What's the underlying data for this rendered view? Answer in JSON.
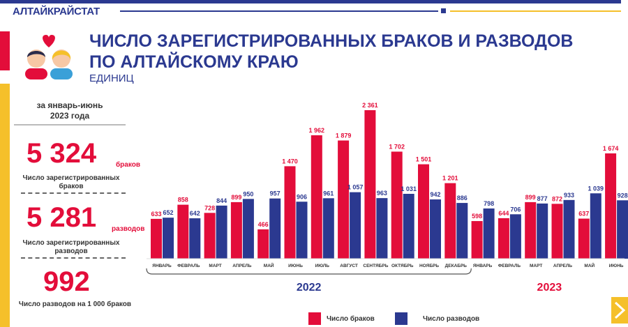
{
  "header": {
    "brand": "АЛТАЙКРАЙСТАТ",
    "title_line1": "ЧИСЛО ЗАРЕГИСТРИРОВАННЫХ БРАКОВ И РАЗВОДОВ",
    "title_line2": "ПО АЛТАЙСКОМУ КРАЮ",
    "subtitle": "ЕДИНИЦ"
  },
  "summary": {
    "period_line1": "за январь-июнь",
    "period_line2": "2023 года",
    "marriages_value": "5 324",
    "marriages_unit": "браков",
    "marriages_caption_line1": "Число зарегистрированных",
    "marriages_caption_line2": "браков",
    "divorces_value": "5 281",
    "divorces_unit": "разводов",
    "divorces_caption_line1": "Число зарегистрированных",
    "divorces_caption_line2": "разводов",
    "ratio_value": "992",
    "ratio_caption": "Число разводов на 1 000 браков"
  },
  "colors": {
    "marriages": "#e30d3a",
    "divorces": "#2b3990",
    "accent_yellow": "#f5c02a"
  },
  "icons": [
    "couple-icon",
    "heart-icon",
    "next-arrow-icon"
  ],
  "chart_data": {
    "type": "bar",
    "categories": [
      "ЯНВАРЬ",
      "ФЕВРАЛЬ",
      "МАРТ",
      "АПРЕЛЬ",
      "МАЙ",
      "ИЮНЬ",
      "ИЮЛЬ",
      "АВГУСТ",
      "СЕНТЯБРЬ",
      "ОКТЯБРЬ",
      "НОЯБРЬ",
      "ДЕКАБРЬ",
      "ЯНВАРЬ",
      "ФЕВРАЛЬ",
      "МАРТ",
      "АПРЕЛЬ",
      "МАЙ",
      "ИЮНЬ"
    ],
    "groups": [
      {
        "label": "2022",
        "from": 0,
        "to": 11
      },
      {
        "label": "2023",
        "from": 12,
        "to": 17
      }
    ],
    "series": [
      {
        "name": "Число браков",
        "color": "#e30d3a",
        "values": [
          633,
          858,
          728,
          899,
          466,
          1470,
          1962,
          1879,
          2361,
          1702,
          1501,
          1201,
          598,
          644,
          899,
          872,
          637,
          1674
        ],
        "labels": [
          "633",
          "858",
          "728",
          "899",
          "466",
          "1 470",
          "1 962",
          "1 879",
          "2 361",
          "1 702",
          "1 501",
          "1 201",
          "598",
          "644",
          "899",
          "872",
          "637",
          "1 674"
        ]
      },
      {
        "name": "Число разводов",
        "color": "#2b3990",
        "values": [
          652,
          642,
          844,
          950,
          957,
          906,
          961,
          1057,
          963,
          1031,
          942,
          886,
          798,
          706,
          877,
          933,
          1039,
          928
        ],
        "labels": [
          "652",
          "642",
          "844",
          "950",
          "957",
          "906",
          "961",
          "1 057",
          "963",
          "1 031",
          "942",
          "886",
          "798",
          "706",
          "877",
          "933",
          "1 039",
          "928"
        ]
      }
    ],
    "ylim": [
      0,
      2450
    ],
    "legend": "bottom"
  }
}
